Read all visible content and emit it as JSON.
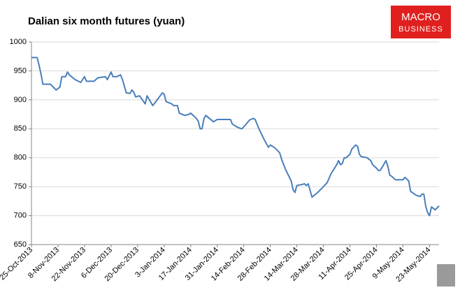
{
  "chart_data": {
    "type": "line",
    "title": "Dalian six month futures (yuan)",
    "x": [
      "25-Oct-2013",
      "28-Oct-2013",
      "29-Oct-2013",
      "30-Oct-2013",
      "31-Oct-2013",
      "4-Nov-2013",
      "7-Nov-2013",
      "9-Nov-2013",
      "10-Nov-2013",
      "12-Nov-2013",
      "13-Nov-2013",
      "14-Nov-2013",
      "17-Nov-2013",
      "20-Nov-2013",
      "22-Nov-2013",
      "23-Nov-2013",
      "27-Nov-2013",
      "29-Nov-2013",
      "3-Dec-2013",
      "4-Dec-2013",
      "6-Dec-2013",
      "7-Dec-2013",
      "9-Dec-2013",
      "11-Dec-2013",
      "12-Dec-2013",
      "14-Dec-2013",
      "16-Dec-2013",
      "17-Dec-2013",
      "18-Dec-2013",
      "19-Dec-2013",
      "21-Dec-2013",
      "24-Dec-2013",
      "25-Dec-2013",
      "28-Dec-2013",
      "31-Dec-2013",
      "2-Jan-2014",
      "3-Jan-2014",
      "4-Jan-2014",
      "7-Jan-2014",
      "8-Jan-2014",
      "10-Jan-2014",
      "11-Jan-2014",
      "14-Jan-2014",
      "16-Jan-2014",
      "17-Jan-2014",
      "20-Jan-2014",
      "21-Jan-2014",
      "22-Jan-2014",
      "23-Jan-2014",
      "24-Jan-2014",
      "25-Jan-2014",
      "29-Jan-2014",
      "31-Jan-2014",
      "7-Feb-2014",
      "8-Feb-2014",
      "11-Feb-2014",
      "13-Feb-2014",
      "15-Feb-2014",
      "17-Feb-2014",
      "19-Feb-2014",
      "20-Feb-2014",
      "22-Feb-2014",
      "25-Feb-2014",
      "27-Feb-2014",
      "28-Feb-2014",
      "2-Mar-2014",
      "4-Mar-2014",
      "5-Mar-2014",
      "6-Mar-2014",
      "8-Mar-2014",
      "11-Mar-2014",
      "12-Mar-2014",
      "13-Mar-2014",
      "14-Mar-2014",
      "17-Mar-2014",
      "18-Mar-2014",
      "19-Mar-2014",
      "20-Mar-2014",
      "22-Mar-2014",
      "25-Mar-2014",
      "28-Mar-2014",
      "30-Mar-2014",
      "1-Apr-2014",
      "4-Apr-2014",
      "5-Apr-2014",
      "6-Apr-2014",
      "7-Apr-2014",
      "8-Apr-2014",
      "9-Apr-2014",
      "11-Apr-2014",
      "12-Apr-2014",
      "14-Apr-2014",
      "15-Apr-2014",
      "16-Apr-2014",
      "17-Apr-2014",
      "20-Apr-2014",
      "22-Apr-2014",
      "23-Apr-2014",
      "25-Apr-2014",
      "26-Apr-2014",
      "27-Apr-2014",
      "30-Apr-2014",
      "1-May-2014",
      "2-May-2014",
      "3-May-2014",
      "5-May-2014",
      "7-May-2014",
      "9-May-2014",
      "10-May-2014",
      "12-May-2014",
      "13-May-2014",
      "16-May-2014",
      "18-May-2014",
      "19-May-2014",
      "20-May-2014",
      "21-May-2014",
      "22-May-2014",
      "23-May-2014",
      "24-May-2014",
      "26-May-2014",
      "28-May-2014"
    ],
    "series": [
      {
        "name": "Dalian six month futures",
        "color": "#4a7ebb",
        "values": [
          973,
          973,
          960,
          945,
          927,
          927,
          917,
          922,
          940,
          940,
          948,
          943,
          935,
          930,
          940,
          932,
          932,
          938,
          940,
          935,
          948,
          940,
          940,
          943,
          935,
          912,
          911,
          917,
          913,
          905,
          907,
          893,
          907,
          890,
          903,
          912,
          910,
          897,
          893,
          890,
          890,
          877,
          873,
          875,
          877,
          868,
          863,
          850,
          850,
          868,
          873,
          862,
          866,
          866,
          858,
          852,
          850,
          857,
          865,
          868,
          866,
          850,
          830,
          818,
          822,
          818,
          812,
          808,
          797,
          780,
          760,
          745,
          740,
          752,
          754,
          755,
          752,
          755,
          732,
          740,
          750,
          757,
          772,
          788,
          795,
          788,
          790,
          800,
          800,
          806,
          815,
          822,
          820,
          806,
          802,
          800,
          795,
          788,
          782,
          778,
          778,
          795,
          785,
          770,
          768,
          762,
          762,
          762,
          766,
          760,
          742,
          735,
          733,
          737,
          737,
          716,
          705,
          700,
          715,
          710,
          717
        ]
      }
    ],
    "xlim": [
      "25-Oct-2013",
      "28-May-2014"
    ],
    "xticks": [
      "25-Oct-2013",
      "8-Nov-2013",
      "22-Nov-2013",
      "6-Dec-2013",
      "20-Dec-2013",
      "3-Jan-2014",
      "17-Jan-2014",
      "31-Jan-2014",
      "14-Feb-2014",
      "28-Feb-2014",
      "14-Mar-2014",
      "28-Mar-2014",
      "11-Apr-2014",
      "25-Apr-2014",
      "9-May-2014",
      "23-May-2014"
    ],
    "ylim": [
      650,
      1000
    ],
    "yticks": [
      650,
      700,
      750,
      800,
      850,
      900,
      950,
      1000
    ],
    "grid": true
  },
  "logo": {
    "line1": "MACRO",
    "line2": "BUSINESS"
  }
}
